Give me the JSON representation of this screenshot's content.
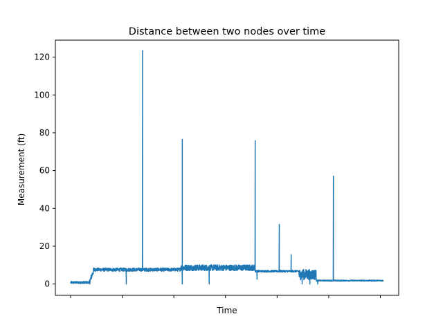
{
  "chart_data": {
    "type": "line",
    "title": "Distance between two nodes over time",
    "xlabel": "Time",
    "ylabel": "Measurement (ft)",
    "xlim": [
      0,
      1000
    ],
    "ylim": [
      -6,
      129
    ],
    "yticks": [
      0,
      20,
      40,
      60,
      80,
      100,
      120
    ],
    "xticks": [
      0,
      165,
      330,
      495,
      660,
      825,
      990
    ],
    "grid": false,
    "series": [
      {
        "color": "#1f77b4",
        "segments": [
          {
            "x0": 0,
            "x1": 60,
            "base": 0.8,
            "noise": 0.6
          },
          {
            "x0": 60,
            "x1": 75,
            "base": 4.5,
            "noise": 1.5,
            "ramp": [
              0.8,
              7.8
            ]
          },
          {
            "x0": 75,
            "x1": 350,
            "base": 7.6,
            "noise": 0.9
          },
          {
            "x0": 350,
            "x1": 590,
            "base": 8.6,
            "noise": 1.6
          },
          {
            "x0": 590,
            "x1": 730,
            "base": 6.8,
            "noise": 0.5
          },
          {
            "x0": 730,
            "x1": 785,
            "base": 5.0,
            "noise": 2.8
          },
          {
            "x0": 785,
            "x1": 1000,
            "base": 1.8,
            "noise": 0.3
          }
        ],
        "spikes": [
          {
            "x": 230,
            "y": 123.5
          },
          {
            "x": 357,
            "y": 76.5
          },
          {
            "x": 590,
            "y": 75.8
          },
          {
            "x": 667,
            "y": 31.5
          },
          {
            "x": 705,
            "y": 15.5
          },
          {
            "x": 840,
            "y": 57.0
          }
        ],
        "dips": [
          {
            "x": 178,
            "y": 0
          },
          {
            "x": 357,
            "y": 0
          },
          {
            "x": 443,
            "y": 0
          },
          {
            "x": 596,
            "y": 2.5
          },
          {
            "x": 740,
            "y": 0
          },
          {
            "x": 765,
            "y": 0
          },
          {
            "x": 790,
            "y": 0
          }
        ]
      }
    ]
  }
}
